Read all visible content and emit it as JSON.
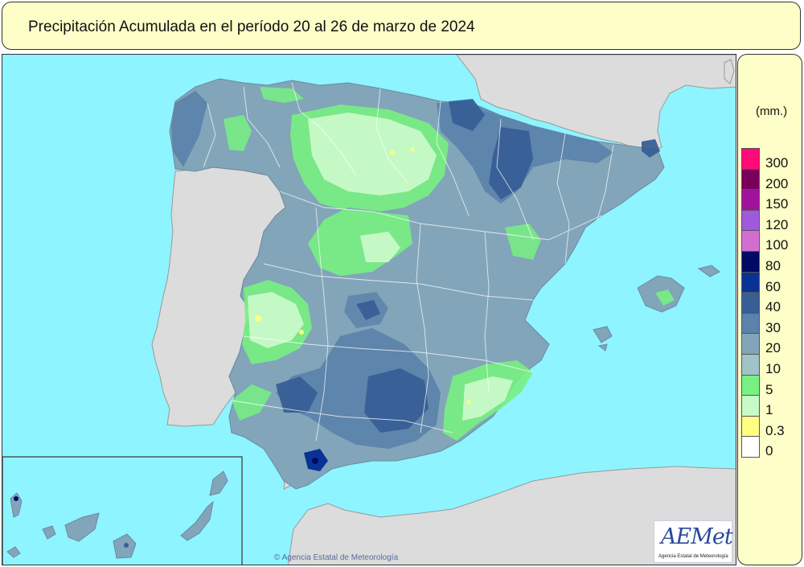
{
  "title": "Precipitación Acumulada en el período 20 al 26 de marzo de 2024",
  "legend": {
    "unit": "(mm.)",
    "classes": [
      {
        "label": "300",
        "color": "#ff0a78"
      },
      {
        "label": "200",
        "color": "#78005a"
      },
      {
        "label": "150",
        "color": "#a0129b"
      },
      {
        "label": "120",
        "color": "#a058dc"
      },
      {
        "label": "100",
        "color": "#d26ed2"
      },
      {
        "label": "80",
        "color": "#000a64"
      },
      {
        "label": "60",
        "color": "#0a3296"
      },
      {
        "label": "40",
        "color": "#375f96"
      },
      {
        "label": "30",
        "color": "#5a82aa"
      },
      {
        "label": "20",
        "color": "#82a5b9"
      },
      {
        "label": "10",
        "color": "#a0c3c8"
      },
      {
        "label": "5",
        "color": "#78f082"
      },
      {
        "label": "1",
        "color": "#c8fac8"
      },
      {
        "label": "0.3",
        "color": "#ffff82"
      },
      {
        "label": "0",
        "color": "#ffffff"
      }
    ]
  },
  "map": {
    "sea_color": "#8ef4ff",
    "land_outside_color": "#dcdcdc",
    "inset_region": "Islas Canarias"
  },
  "copyright": "© Agencia Estatal de Meteorología",
  "logo": {
    "mark": "AEMet",
    "subtitle": "Agencia Estatal de Meteorología"
  }
}
